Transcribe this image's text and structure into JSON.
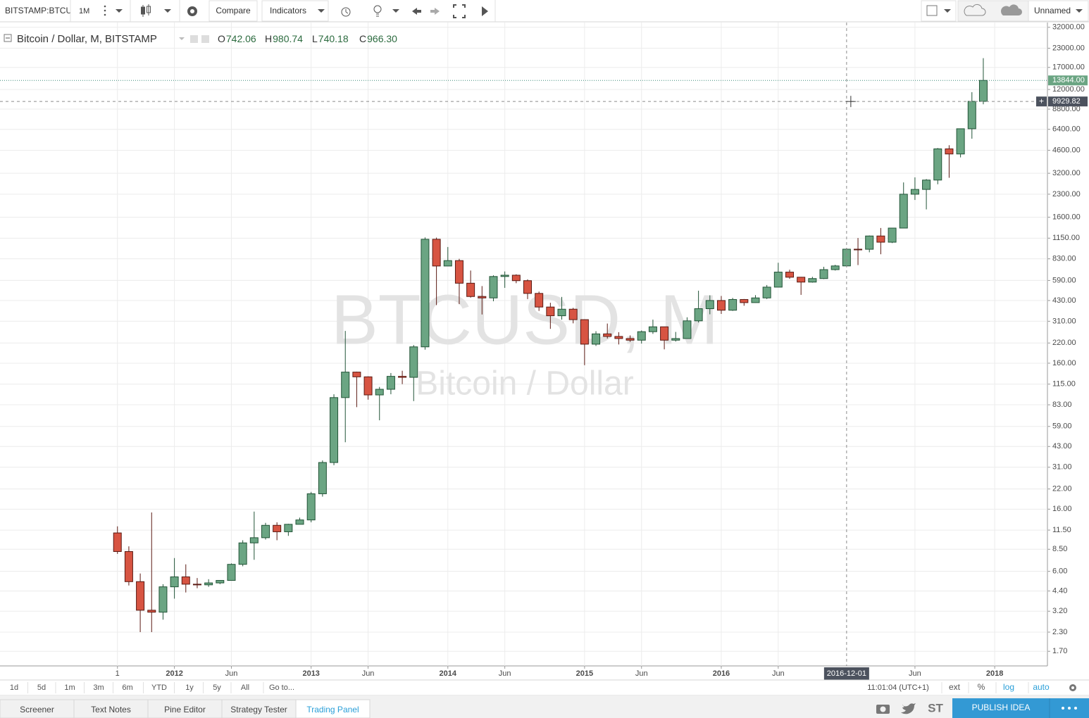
{
  "toolbar": {
    "symbol": "BITSTAMP:BTCUSD",
    "interval": "1M",
    "compare": "Compare",
    "indicators": "Indicators",
    "layout_name": "Unnamed"
  },
  "chart_data": {
    "type": "candlestick",
    "title": "Bitcoin / Dollar, M, BITSTAMP",
    "ohlc_prefixes": [
      "O",
      "H",
      "L",
      "C"
    ],
    "header_labels": [
      "742.06",
      "980.74",
      "740.18",
      "966.30"
    ],
    "watermark": "BTCUSD, M",
    "watermark_subtitle": "Bitcoin / Dollar",
    "x": [
      "2011-08",
      "2011-09",
      "2011-10",
      "2011-11",
      "2011-12",
      "2012-01",
      "2012-02",
      "2012-03",
      "2012-04",
      "2012-05",
      "2012-06",
      "2012-07",
      "2012-08",
      "2012-09",
      "2012-10",
      "2012-11",
      "2012-12",
      "2013-01",
      "2013-02",
      "2013-03",
      "2013-04",
      "2013-05",
      "2013-06",
      "2013-07",
      "2013-08",
      "2013-09",
      "2013-10",
      "2013-11",
      "2013-12",
      "2014-01",
      "2014-02",
      "2014-03",
      "2014-04",
      "2014-05",
      "2014-06",
      "2014-07",
      "2014-08",
      "2014-09",
      "2014-10",
      "2014-11",
      "2014-12",
      "2015-01",
      "2015-02",
      "2015-03",
      "2015-04",
      "2015-05",
      "2015-06",
      "2015-07",
      "2015-08",
      "2015-09",
      "2015-10",
      "2015-11",
      "2015-12",
      "2016-01",
      "2016-02",
      "2016-03",
      "2016-04",
      "2016-05",
      "2016-06",
      "2016-07",
      "2016-08",
      "2016-09",
      "2016-10",
      "2016-11",
      "2016-12",
      "2017-01",
      "2017-02",
      "2017-03",
      "2017-04",
      "2017-05",
      "2017-06",
      "2017-07",
      "2017-08",
      "2017-09",
      "2017-10",
      "2017-11",
      "2017-12"
    ],
    "open": [
      11.0,
      8.2,
      5.1,
      3.25,
      3.15,
      4.7,
      5.5,
      4.9,
      4.85,
      5.0,
      5.2,
      6.7,
      9.4,
      10.2,
      12.4,
      11.2,
      12.6,
      13.5,
      20.4,
      33.4,
      93,
      139,
      129,
      97,
      106,
      130,
      128,
      207,
      1130,
      741,
      807,
      565,
      458,
      448,
      628,
      641,
      588,
      481,
      388,
      338,
      375,
      318,
      216,
      254,
      244,
      236,
      230,
      263,
      284,
      230,
      236,
      312,
      378,
      430,
      369,
      437,
      416,
      448,
      531,
      673,
      621,
      575,
      608,
      700,
      742.06,
      966.3,
      965,
      1190,
      1079,
      1348,
      2300,
      2480,
      2875,
      4703,
      4338,
      6458,
      9949
    ],
    "high": [
      12.2,
      8.9,
      5.8,
      15.2,
      4.9,
      7.4,
      6.7,
      5.4,
      5.3,
      5.2,
      6.8,
      9.8,
      15.4,
      12.9,
      13.0,
      12.7,
      14.0,
      21,
      34.5,
      98,
      266,
      140,
      130,
      110,
      137,
      142,
      213,
      1163,
      1160,
      1000,
      830,
      690,
      540,
      640,
      680,
      650,
      600,
      495,
      415,
      455,
      383,
      320,
      265,
      299,
      261,
      248,
      268,
      318,
      284,
      262,
      330,
      502,
      467,
      462,
      448,
      440,
      468,
      549,
      780,
      699,
      624,
      625,
      732,
      755,
      980.74,
      1153,
      1200,
      1350,
      1350,
      2770,
      3000,
      2920,
      4765,
      4980,
      6470,
      11500,
      19666
    ],
    "low": [
      7.9,
      4.8,
      2.3,
      2.3,
      2.8,
      3.9,
      4.3,
      4.6,
      4.7,
      4.9,
      5.2,
      6.5,
      7.2,
      9.9,
      9.8,
      10.5,
      12.6,
      13,
      19.5,
      32,
      46,
      80,
      90,
      65,
      98,
      115,
      88,
      198,
      400,
      741,
      406,
      450,
      345,
      425,
      525,
      565,
      440,
      365,
      275,
      318,
      300,
      155,
      210,
      236,
      215,
      224,
      218,
      254,
      199,
      225,
      236,
      304,
      346,
      348,
      365,
      396,
      415,
      440,
      531,
      605,
      470,
      570,
      603,
      690,
      740.18,
      752,
      920,
      892,
      1064,
      1350,
      2100,
      1810,
      2690,
      2980,
      4111,
      5519,
      9500
    ],
    "close": [
      8.2,
      5.1,
      3.25,
      3.15,
      4.7,
      5.5,
      4.9,
      4.85,
      5.0,
      5.2,
      6.7,
      9.4,
      10.2,
      12.4,
      11.2,
      12.6,
      13.5,
      20.4,
      33.4,
      93,
      139,
      129,
      97,
      106,
      130,
      128,
      207,
      1130,
      741,
      807,
      565,
      458,
      448,
      628,
      641,
      588,
      481,
      388,
      338,
      375,
      318,
      216,
      254,
      244,
      236,
      230,
      263,
      284,
      230,
      236,
      312,
      378,
      430,
      369,
      437,
      416,
      448,
      531,
      673,
      621,
      575,
      608,
      700,
      742,
      966.3,
      965,
      1190,
      1079,
      1348,
      2300,
      2480,
      2875,
      4703,
      4338,
      6458,
      9949,
      13844
    ],
    "up_color": "#6ba583",
    "down_color": "#d75442",
    "log_scale": true,
    "grid": true,
    "xlim": [
      "2010-10",
      "2018-06"
    ],
    "xticks": [
      {
        "value": "2011-08",
        "label": "1"
      },
      {
        "value": "2012-01",
        "label": "2012"
      },
      {
        "value": "2012-06",
        "label": "Jun"
      },
      {
        "value": "2013-01",
        "label": "2013"
      },
      {
        "value": "2013-06",
        "label": "Jun"
      },
      {
        "value": "2014-01",
        "label": "2014"
      },
      {
        "value": "2014-06",
        "label": "Jun"
      },
      {
        "value": "2015-01",
        "label": "2015"
      },
      {
        "value": "2015-06",
        "label": "Jun"
      },
      {
        "value": "2016-01",
        "label": "2016"
      },
      {
        "value": "2016-06",
        "label": "Jun"
      },
      {
        "value": "2017-06",
        "label": "Jun"
      },
      {
        "value": "2018-01",
        "label": "2018"
      }
    ],
    "ylim": [
      1.35,
      33000
    ],
    "yticks": [
      {
        "value": 32000,
        "label": "32000.00"
      },
      {
        "value": 23000,
        "label": "23000.00"
      },
      {
        "value": 17000,
        "label": "17000.00"
      },
      {
        "value": 12000,
        "label": "12000.00"
      },
      {
        "value": 8800,
        "label": "8800.00"
      },
      {
        "value": 6400,
        "label": "6400.00"
      },
      {
        "value": 4600,
        "label": "4600.00"
      },
      {
        "value": 3200,
        "label": "3200.00"
      },
      {
        "value": 2300,
        "label": "2300.00"
      },
      {
        "value": 1600,
        "label": "1600.00"
      },
      {
        "value": 1150,
        "label": "1150.00"
      },
      {
        "value": 830,
        "label": "830.00"
      },
      {
        "value": 590,
        "label": "590.00"
      },
      {
        "value": 430,
        "label": "430.00"
      },
      {
        "value": 310,
        "label": "310.00"
      },
      {
        "value": 220,
        "label": "220.00"
      },
      {
        "value": 160,
        "label": "160.00"
      },
      {
        "value": 115,
        "label": "115.00"
      },
      {
        "value": 83,
        "label": "83.00"
      },
      {
        "value": 59,
        "label": "59.00"
      },
      {
        "value": 43,
        "label": "43.00"
      },
      {
        "value": 31,
        "label": "31.00"
      },
      {
        "value": 22,
        "label": "22.00"
      },
      {
        "value": 16,
        "label": "16.00"
      },
      {
        "value": 11.5,
        "label": "11.50"
      },
      {
        "value": 8.5,
        "label": "8.50"
      },
      {
        "value": 6,
        "label": "6.00"
      },
      {
        "value": 4.4,
        "label": "4.40"
      },
      {
        "value": 3.2,
        "label": "3.20"
      },
      {
        "value": 2.3,
        "label": "2.30"
      },
      {
        "value": 1.7,
        "label": "1.70"
      }
    ],
    "last_price": {
      "value": 13844,
      "label": "13844.00"
    },
    "crosshair": {
      "x": "2016-12-01",
      "y": 9929.82
    }
  },
  "range_bar": {
    "buttons": [
      "1d",
      "5d",
      "1m",
      "3m",
      "6m",
      "YTD",
      "1y",
      "5y",
      "All",
      "Go to..."
    ],
    "time": "11:01:04 (UTC+1)",
    "options": [
      "ext",
      "%",
      "log",
      "auto"
    ]
  },
  "bottom_tabs": [
    "Screener",
    "Text Notes",
    "Pine Editor",
    "Strategy Tester",
    "Trading Panel"
  ],
  "publish": "PUBLISH IDEA"
}
